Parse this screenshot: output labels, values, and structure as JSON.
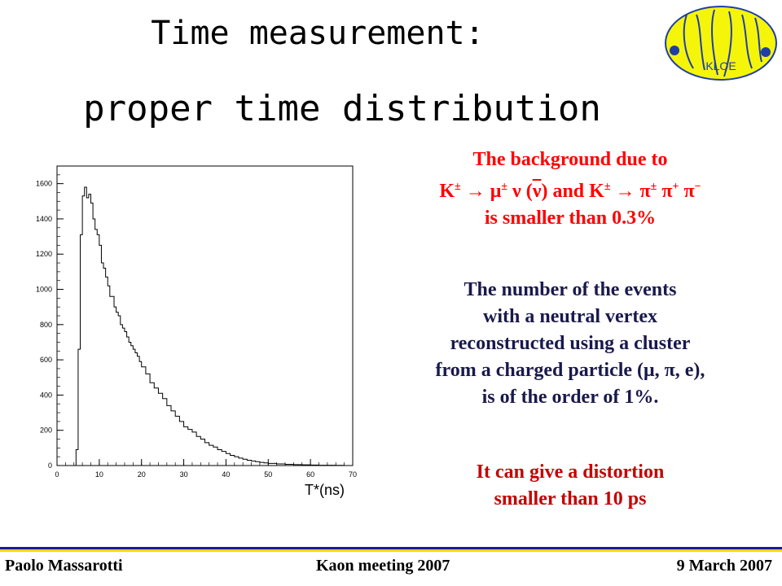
{
  "slide": {
    "title_line1": "Time measurement:",
    "title_line2": "proper time distribution",
    "logo_text": "KLOE"
  },
  "background_text": {
    "line1": "The background due to",
    "line2_k1": "K",
    "line2_pm1": "±",
    "line2_arrow1": " → ",
    "line2_mu": "μ",
    "line2_pm2": "±",
    "line2_nu": " ν (",
    "line2_nubar": "ν",
    "line2_and": ") and K",
    "line2_pm3": "±",
    "line2_arrow2": " → ",
    "line2_pi1": "π",
    "line2_pm4": "±",
    "line2_pi2": " π",
    "line2_plus": "+",
    "line2_pi3": " π",
    "line2_minus": "−",
    "line3": "is smaller than 0.3%"
  },
  "events_text": {
    "line1": "The number of the events",
    "line2": "with a neutral vertex",
    "line3": "reconstructed using a cluster",
    "line4": "from a charged particle (μ, π, e),",
    "line5": "is of the order of 1%."
  },
  "distortion_text": {
    "line1": "It can give a distortion",
    "line2": "smaller than 10 ps"
  },
  "footer": {
    "author": "Paolo Massarotti",
    "meeting": "Kaon  meeting  2007",
    "date": "9 March 2007"
  },
  "colors": {
    "red": "#ff0000",
    "navy": "#19194d",
    "maroon": "#c40000",
    "footer_blue": "#1a1a99",
    "footer_gold": "#ffd700",
    "logo_yellow": "#f5f50a",
    "logo_blue": "#1f3fa6"
  },
  "chart_data": {
    "type": "bar",
    "xlabel": "T*(ns)",
    "ylabel": "",
    "xlim": [
      0,
      70
    ],
    "ylim": [
      0,
      1700
    ],
    "xticks": [
      0,
      10,
      20,
      30,
      40,
      50,
      60,
      70
    ],
    "yticks": [
      0,
      200,
      400,
      600,
      800,
      1000,
      1200,
      1400,
      1600
    ],
    "x_bin_starts": [
      4.5,
      5,
      5.5,
      6,
      6.5,
      7,
      7.5,
      8,
      8.5,
      9,
      9.5,
      10,
      10.5,
      11,
      11.5,
      12,
      12.5,
      13,
      13.5,
      14,
      14.5,
      15,
      15.5,
      16,
      16.5,
      17,
      17.5,
      18,
      18.5,
      19,
      19.5,
      20,
      21,
      22,
      23,
      24,
      25,
      26,
      27,
      28,
      29,
      30,
      31,
      32,
      33,
      34,
      35,
      36,
      37,
      38,
      39,
      40,
      41,
      42,
      43,
      44,
      45,
      46,
      47,
      48,
      49,
      50,
      52,
      54,
      56,
      58,
      60,
      62,
      64,
      66,
      68
    ],
    "x_bin_width_note": "bins of 0.5 ns up to 20 ns, 1 ns to 50 ns, 2 ns beyond",
    "values": [
      90,
      660,
      1310,
      1530,
      1580,
      1520,
      1540,
      1490,
      1400,
      1340,
      1310,
      1250,
      1150,
      1120,
      1070,
      1020,
      960,
      960,
      900,
      870,
      850,
      800,
      780,
      760,
      730,
      700,
      680,
      660,
      640,
      620,
      590,
      560,
      520,
      470,
      440,
      410,
      380,
      340,
      310,
      280,
      250,
      220,
      205,
      190,
      165,
      150,
      130,
      115,
      105,
      90,
      80,
      68,
      58,
      50,
      42,
      36,
      30,
      26,
      22,
      18,
      15,
      12,
      9,
      7,
      5,
      4,
      3,
      2,
      2,
      1,
      0
    ]
  }
}
